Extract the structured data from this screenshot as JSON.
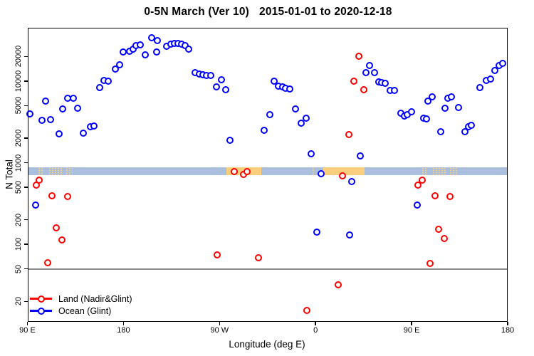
{
  "title": {
    "part1": "0-5N March (Ver 10)",
    "part2": "2015-01-01 to 2020-12-18"
  },
  "chart_data": {
    "type": "scatter",
    "title": "0-5N March (Ver 10)  2015-01-01 to 2020-12-18",
    "xlabel": "Longitude (deg E)",
    "ylabel": "N Total",
    "x_axis": {
      "note": "longitude axis wraps eastward; plot coordinate range 90..540 deg",
      "range": [
        90,
        540
      ],
      "ticks": [
        {
          "lon": 90,
          "label": "90 E"
        },
        {
          "lon": 180,
          "label": "180"
        },
        {
          "lon": 270,
          "label": "90 W"
        },
        {
          "lon": 360,
          "label": "0"
        },
        {
          "lon": 450,
          "label": "90 E"
        },
        {
          "lon": 540,
          "label": "180"
        }
      ]
    },
    "y_axis": {
      "scale": "log",
      "range": [
        11,
        45000
      ],
      "ticks": [
        {
          "value": 20,
          "label": "20"
        },
        {
          "value": 50,
          "label": "50"
        },
        {
          "value": 100,
          "label": "100"
        },
        {
          "value": 200,
          "label": "200"
        },
        {
          "value": 500,
          "label": "500"
        },
        {
          "value": 1000,
          "label": "1000"
        },
        {
          "value": 2000,
          "label": "2000"
        },
        {
          "value": 5000,
          "label": "5000"
        },
        {
          "value": 10000,
          "label": "10000"
        },
        {
          "value": 20000,
          "label": "20000"
        }
      ]
    },
    "reference_line": {
      "value": 50,
      "color": "#8c8c8c"
    },
    "land_ocean_band": {
      "value_range": [
        700,
        886
      ],
      "ocean_color": "#a9bfdd",
      "land_color": "#f9ce7d",
      "land_patches": [
        {
          "from": 99.5,
          "to": 104.5,
          "style": "speckled"
        },
        {
          "from": 109.5,
          "to": 123,
          "style": "speckled"
        },
        {
          "from": 125.5,
          "to": 132.5,
          "style": "speckled"
        },
        {
          "from": 276.5,
          "to": 309,
          "style": "solid"
        },
        {
          "from": 356.5,
          "to": 359.5,
          "style": "speckled"
        },
        {
          "from": 367,
          "to": 406,
          "style": "solid"
        },
        {
          "from": 459.5,
          "to": 464.5,
          "style": "speckled"
        },
        {
          "from": 469.5,
          "to": 483,
          "style": "speckled"
        },
        {
          "from": 485.5,
          "to": 492.5,
          "style": "speckled"
        }
      ]
    },
    "legend": [
      {
        "label": "Land (Nadir&Glint)",
        "color": "#ff0000"
      },
      {
        "label": "Ocean (Glint)",
        "color": "#0000ff"
      }
    ],
    "series": [
      {
        "name": "Land (Nadir&Glint)",
        "color": "#ff0000",
        "points": [
          [
            98.3,
            534
          ],
          [
            100.8,
            611
          ],
          [
            109,
            60
          ],
          [
            113,
            393
          ],
          [
            117,
            159
          ],
          [
            122.5,
            114
          ],
          [
            128,
            385
          ],
          [
            268,
            75
          ],
          [
            284,
            778
          ],
          [
            292.5,
            713
          ],
          [
            296,
            778
          ],
          [
            306.5,
            68
          ],
          [
            352,
            15.5
          ],
          [
            381,
            32
          ],
          [
            385.5,
            690
          ],
          [
            391,
            2190
          ],
          [
            396,
            10000
          ],
          [
            400.3,
            20000
          ],
          [
            405,
            7790
          ],
          [
            456,
            534
          ],
          [
            460,
            611
          ],
          [
            467,
            58
          ],
          [
            472,
            392
          ],
          [
            475.5,
            154
          ],
          [
            480.5,
            117
          ],
          [
            486,
            385
          ]
        ]
      },
      {
        "name": "Ocean (Glint)",
        "color": "#0000ff",
        "points": [
          [
            92.5,
            3950
          ],
          [
            97.7,
            305
          ],
          [
            104,
            3280
          ],
          [
            107,
            5640
          ],
          [
            112,
            3350
          ],
          [
            120,
            2270
          ],
          [
            123,
            4520
          ],
          [
            128,
            6110
          ],
          [
            133,
            6180
          ],
          [
            137,
            4670
          ],
          [
            142.5,
            2310
          ],
          [
            149,
            2770
          ],
          [
            152.5,
            2830
          ],
          [
            157.5,
            8260
          ],
          [
            162,
            10100
          ],
          [
            166,
            9900
          ],
          [
            172.3,
            14100
          ],
          [
            176.7,
            15900
          ],
          [
            180,
            22600
          ],
          [
            185.5,
            23000
          ],
          [
            189,
            24400
          ],
          [
            192,
            27200
          ],
          [
            195.5,
            27700
          ],
          [
            200.5,
            20900
          ],
          [
            206.5,
            33600
          ],
          [
            211,
            22600
          ],
          [
            212,
            31400
          ],
          [
            220.3,
            26600
          ],
          [
            224.3,
            28400
          ],
          [
            227.7,
            29000
          ],
          [
            231,
            29000
          ],
          [
            234.3,
            28400
          ],
          [
            237.7,
            27100
          ],
          [
            241,
            24400
          ],
          [
            247,
            12600
          ],
          [
            251,
            12200
          ],
          [
            254.3,
            11900
          ],
          [
            257.7,
            11800
          ],
          [
            261.5,
            11800
          ],
          [
            267,
            8430
          ],
          [
            271.7,
            10400
          ],
          [
            276,
            7870
          ],
          [
            280,
            1870
          ],
          [
            311.5,
            2480
          ],
          [
            317,
            3870
          ],
          [
            321,
            9960
          ],
          [
            325.5,
            8650
          ],
          [
            329,
            8430
          ],
          [
            332,
            8100
          ],
          [
            336,
            8000
          ],
          [
            341.5,
            4520
          ],
          [
            346.5,
            3030
          ],
          [
            351,
            3530
          ],
          [
            356,
            1290
          ],
          [
            361.5,
            142
          ],
          [
            365.5,
            730
          ],
          [
            392,
            130
          ],
          [
            394,
            590
          ],
          [
            402,
            1200
          ],
          [
            407,
            12600
          ],
          [
            410.5,
            15400
          ],
          [
            415,
            12600
          ],
          [
            419.5,
            9800
          ],
          [
            422,
            9500
          ],
          [
            425,
            9350
          ],
          [
            430,
            7600
          ],
          [
            434,
            7600
          ],
          [
            440,
            4010
          ],
          [
            443,
            3700
          ],
          [
            446,
            3890
          ],
          [
            450,
            4160
          ],
          [
            455.5,
            300
          ],
          [
            461.5,
            3500
          ],
          [
            464,
            3440
          ],
          [
            465.5,
            5640
          ],
          [
            469,
            6440
          ],
          [
            477,
            2390
          ],
          [
            481,
            4610
          ],
          [
            484,
            6100
          ],
          [
            487,
            6440
          ],
          [
            494,
            4740
          ],
          [
            500,
            2390
          ],
          [
            503,
            2770
          ],
          [
            506,
            2880
          ],
          [
            514,
            8260
          ],
          [
            520,
            10200
          ],
          [
            524,
            10600
          ],
          [
            528,
            13400
          ],
          [
            532,
            15400
          ],
          [
            535,
            16400
          ]
        ]
      }
    ]
  }
}
